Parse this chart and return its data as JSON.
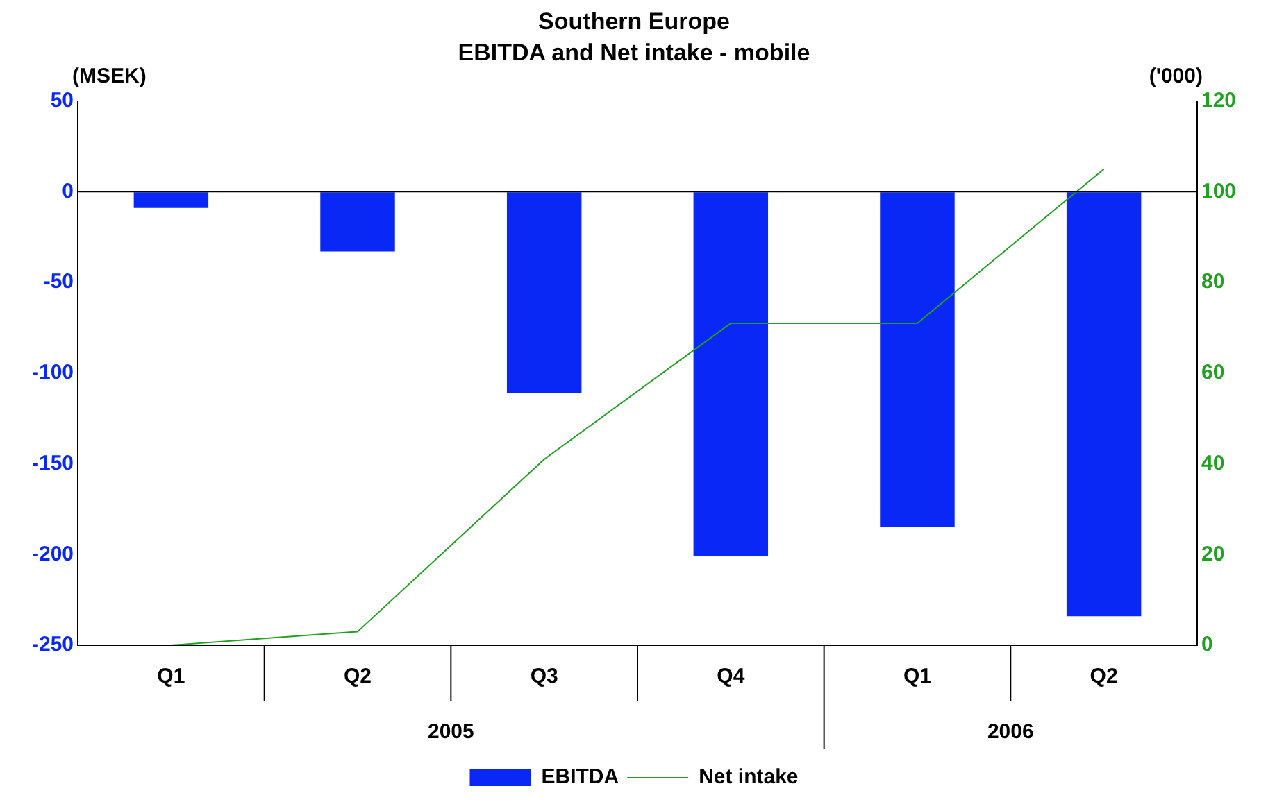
{
  "chart_data": {
    "type": "bar",
    "title": "Southern Europe",
    "subtitle": "EBITDA and Net intake - mobile",
    "ylabel": "(MSEK)",
    "y2label": "('000)",
    "categories": [
      "Q1",
      "Q2",
      "Q3",
      "Q4",
      "Q1",
      "Q2"
    ],
    "series": [
      {
        "name": "EBITDA",
        "color": "#0a28f5",
        "values": [
          -9,
          -33,
          -111,
          -201,
          -185,
          -234
        ]
      },
      {
        "name": "Net intake",
        "type": "line",
        "axis": "y2",
        "color": "#22a022",
        "values": [
          0,
          3,
          41,
          71,
          71,
          105
        ]
      }
    ],
    "ylim": [
      -250,
      50
    ],
    "yticks": [
      -250,
      -200,
      -150,
      -100,
      -50,
      0,
      50
    ],
    "y2lim": [
      0,
      120
    ],
    "y2ticks": [
      0,
      20,
      40,
      60,
      80,
      100,
      120
    ],
    "annotations": [
      "2005",
      "2006"
    ],
    "ref_lines": [
      {
        "axis": "y",
        "value": 0,
        "color": "#000000"
      }
    ],
    "grid": false,
    "legend": "bottom"
  }
}
